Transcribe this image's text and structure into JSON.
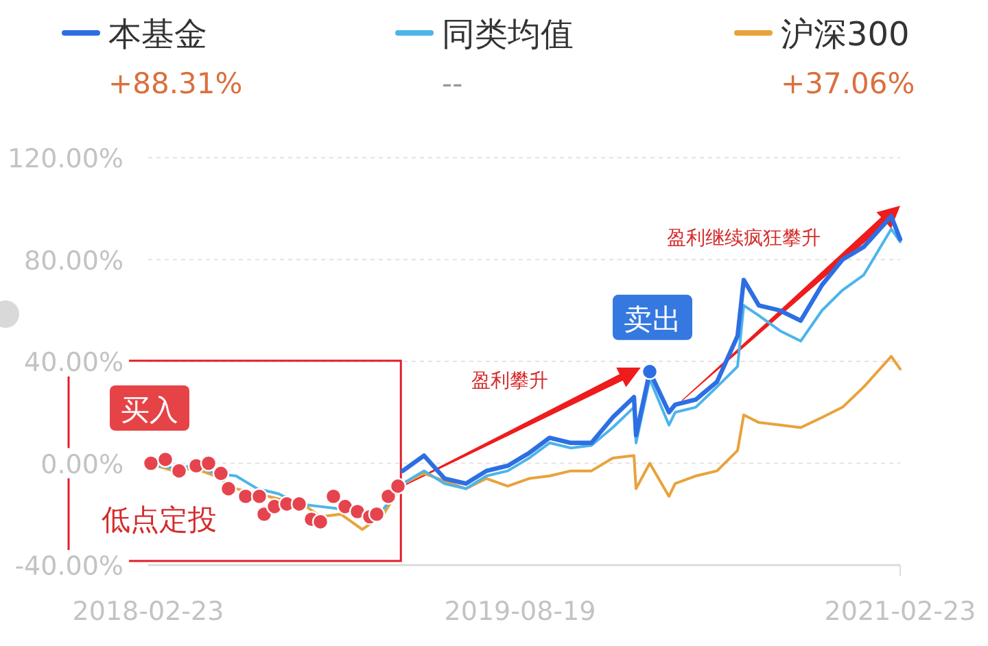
{
  "chart_data": {
    "type": "line",
    "xlim": [
      "2018-02-23",
      "2021-02-23"
    ],
    "xticks": [
      "2018-02-23",
      "2019-08-19",
      "2021-02-23"
    ],
    "ylim": [
      -40,
      120
    ],
    "yticks": [
      {
        "value": -40,
        "label": "-40.00%"
      },
      {
        "value": 0,
        "label": "0.00%"
      },
      {
        "value": 40,
        "label": "40.00%"
      },
      {
        "value": 80,
        "label": "80.00%"
      },
      {
        "value": 120,
        "label": "120.00%"
      }
    ],
    "grid": "y",
    "legend": "top",
    "annotations": [
      "+88.31%",
      "--",
      "+37.06%",
      "买入",
      "低点定投",
      {
        "text": "卖出",
        "x": "2020-02-24",
        "y": 36
      },
      "盈利攀升",
      "盈利继续疯狂攀升"
    ],
    "series": [
      {
        "name": "本基金",
        "color": "#2d6fe3",
        "x": [
          "2019-03-01",
          "2019-04-01",
          "2019-05-01",
          "2019-06-01",
          "2019-07-01",
          "2019-08-01",
          "2019-09-01",
          "2019-10-01",
          "2019-11-01",
          "2019-12-01",
          "2020-01-01",
          "2020-02-01",
          "2020-02-04",
          "2020-02-24",
          "2020-03-23",
          "2020-04-01",
          "2020-05-01",
          "2020-06-01",
          "2020-07-01",
          "2020-07-10",
          "2020-08-01",
          "2020-09-01",
          "2020-10-01",
          "2020-11-01",
          "2020-12-01",
          "2021-01-01",
          "2021-02-10",
          "2021-02-23"
        ],
        "values": [
          -3,
          3,
          -6,
          -8,
          -3,
          -1,
          4,
          10,
          8,
          8,
          18,
          26,
          11,
          36,
          20,
          23,
          25,
          32,
          50,
          72,
          62,
          60,
          56,
          70,
          80,
          85,
          97,
          88
        ]
      },
      {
        "name": "同类均值",
        "color": "#4db4ea",
        "x": [
          "2018-02-23",
          "2018-04-01",
          "2018-05-01",
          "2018-06-01",
          "2018-07-01",
          "2018-08-01",
          "2018-09-01",
          "2018-10-01",
          "2018-11-01",
          "2018-12-01",
          "2019-01-01",
          "2019-02-01",
          "2019-03-01",
          "2019-04-01",
          "2019-05-01",
          "2019-06-01",
          "2019-07-01",
          "2019-08-01",
          "2019-09-01",
          "2019-10-01",
          "2019-11-01",
          "2019-12-01",
          "2020-01-01",
          "2020-02-01",
          "2020-02-04",
          "2020-02-24",
          "2020-03-23",
          "2020-04-01",
          "2020-05-01",
          "2020-06-01",
          "2020-07-01",
          "2020-07-10",
          "2020-08-01",
          "2020-09-01",
          "2020-10-01",
          "2020-11-01",
          "2020-12-01",
          "2021-01-01",
          "2021-02-10",
          "2021-02-23"
        ],
        "values": [
          0,
          -2,
          -1,
          -4,
          -5,
          -10,
          -12,
          -16,
          -17,
          -18,
          -21,
          -18,
          -8,
          -3,
          -8,
          -10,
          -5,
          -3,
          2,
          8,
          6,
          7,
          14,
          22,
          8,
          33,
          15,
          20,
          22,
          30,
          38,
          62,
          58,
          52,
          48,
          60,
          68,
          74,
          92,
          87
        ]
      },
      {
        "name": "沪深300",
        "color": "#e9a23b",
        "x": [
          "2018-02-23",
          "2018-04-01",
          "2018-05-01",
          "2018-06-01",
          "2018-07-01",
          "2018-08-01",
          "2018-09-01",
          "2018-10-01",
          "2018-11-01",
          "2018-12-01",
          "2019-01-01",
          "2019-02-01",
          "2019-03-01",
          "2019-04-01",
          "2019-05-01",
          "2019-06-01",
          "2019-07-01",
          "2019-08-01",
          "2019-09-01",
          "2019-10-01",
          "2019-11-01",
          "2019-12-01",
          "2020-01-01",
          "2020-02-01",
          "2020-02-04",
          "2020-02-24",
          "2020-03-23",
          "2020-04-01",
          "2020-05-01",
          "2020-06-01",
          "2020-07-01",
          "2020-07-10",
          "2020-08-01",
          "2020-09-01",
          "2020-10-01",
          "2020-11-01",
          "2020-12-01",
          "2021-01-01",
          "2021-02-10",
          "2021-02-23"
        ],
        "values": [
          0,
          -3,
          -2,
          -5,
          -10,
          -12,
          -14,
          -15,
          -21,
          -20,
          -26,
          -20,
          -8,
          -4,
          -7,
          -10,
          -6,
          -9,
          -6,
          -5,
          -3,
          -3,
          2,
          3,
          -10,
          0,
          -13,
          -8,
          -5,
          -3,
          5,
          19,
          16,
          15,
          14,
          18,
          22,
          30,
          42,
          37
        ]
      },
      {
        "type": "scatter",
        "marker": "circle",
        "color": "#e5444e",
        "x": [
          "2018-02-27",
          "2018-03-20",
          "2018-04-09",
          "2018-05-04",
          "2018-05-22",
          "2018-06-09",
          "2018-06-20",
          "2018-07-15",
          "2018-08-04",
          "2018-08-11",
          "2018-08-26",
          "2018-09-13",
          "2018-10-01",
          "2018-10-19",
          "2018-11-01",
          "2018-11-20",
          "2018-12-07",
          "2018-12-25",
          "2019-01-12",
          "2019-01-22",
          "2019-02-08",
          "2019-02-22"
        ],
        "values": [
          0,
          1.5,
          -3,
          -1,
          0,
          -4,
          -10,
          -13,
          -13,
          -20,
          -17,
          -16,
          -16,
          -22,
          -23,
          -13,
          -17,
          -19,
          -21,
          -20,
          -13,
          -9
        ]
      },
      {
        "type": "scatter",
        "marker": "circle",
        "color": "#2d6fe3",
        "x": [
          "2020-02-24"
        ],
        "values": [
          36
        ]
      }
    ]
  }
}
